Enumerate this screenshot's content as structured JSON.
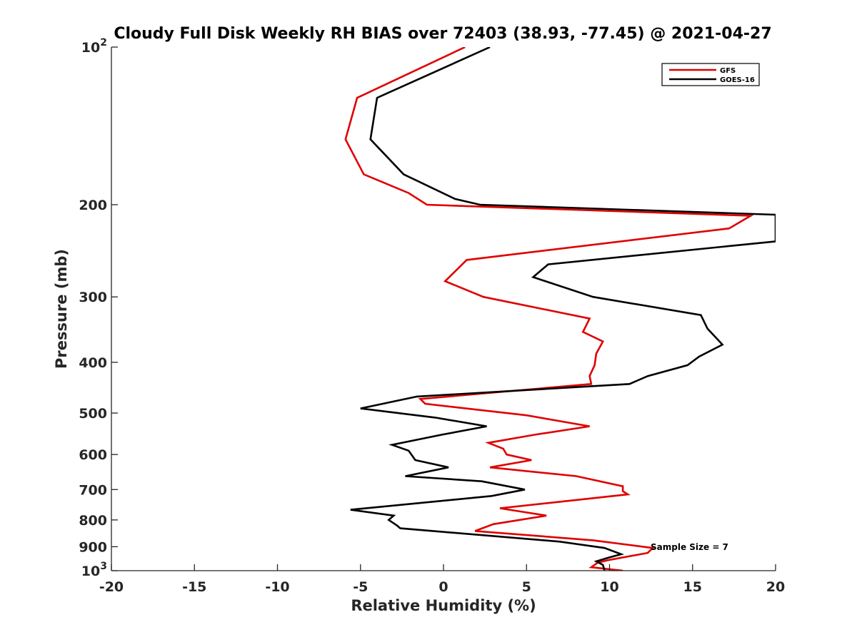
{
  "chart_data": {
    "type": "line",
    "title": "Cloudy Full Disk Weekly RH BIAS over 72403 (38.93, -77.45) @ 2021-04-27",
    "xlabel": "Relative Humidity (%)",
    "ylabel": "Pressure (mb)",
    "xlim": [
      -20,
      20
    ],
    "ylim": [
      1000,
      100
    ],
    "y_scale": "log",
    "y_reversed": true,
    "grid": false,
    "legend": "top-right",
    "x_ticks": [
      -20,
      -15,
      -10,
      -5,
      0,
      5,
      10,
      15,
      20
    ],
    "x_tick_labels": [
      "-20",
      "-15",
      "-10",
      "-5",
      "0",
      "5",
      "10",
      "15",
      "20"
    ],
    "y_ticks": [
      100,
      200,
      300,
      400,
      500,
      600,
      700,
      800,
      900,
      1000
    ],
    "y_tick_labels": [
      {
        "base": "10",
        "exp": "2"
      },
      {
        "base": "200"
      },
      {
        "base": "300"
      },
      {
        "base": "400"
      },
      {
        "base": "500"
      },
      {
        "base": "600"
      },
      {
        "base": "700"
      },
      {
        "base": "800"
      },
      {
        "base": "900"
      },
      {
        "base": "10",
        "exp": "3"
      }
    ],
    "annotation": "Sample Size = 7",
    "series": [
      {
        "name": "GFS",
        "color": "#e00000",
        "points": [
          [
            1.3,
            100
          ],
          [
            -5.2,
            125
          ],
          [
            -5.9,
            150
          ],
          [
            -4.8,
            175
          ],
          [
            -2.1,
            190
          ],
          [
            -1.0,
            200
          ],
          [
            18.5,
            210
          ],
          [
            17.2,
            222
          ],
          [
            1.4,
            255
          ],
          [
            0.1,
            280
          ],
          [
            2.4,
            300
          ],
          [
            8.8,
            330
          ],
          [
            8.4,
            350
          ],
          [
            9.6,
            365
          ],
          [
            9.2,
            385
          ],
          [
            9.1,
            405
          ],
          [
            8.8,
            425
          ],
          [
            8.9,
            440
          ],
          [
            -1.4,
            470
          ],
          [
            -1.1,
            480
          ],
          [
            5.0,
            505
          ],
          [
            8.8,
            530
          ],
          [
            5.5,
            550
          ],
          [
            2.7,
            570
          ],
          [
            3.6,
            585
          ],
          [
            3.8,
            600
          ],
          [
            5.3,
            615
          ],
          [
            2.8,
            635
          ],
          [
            8.0,
            660
          ],
          [
            10.8,
            690
          ],
          [
            10.8,
            705
          ],
          [
            11.1,
            715
          ],
          [
            3.4,
            760
          ],
          [
            6.2,
            785
          ],
          [
            3.0,
            815
          ],
          [
            1.9,
            840
          ],
          [
            9.0,
            875
          ],
          [
            12.6,
            905
          ],
          [
            12.3,
            925
          ],
          [
            9.9,
            955
          ],
          [
            9.3,
            965
          ],
          [
            8.9,
            985
          ],
          [
            10.8,
            1000
          ]
        ]
      },
      {
        "name": "GOES-16",
        "color": "#000000",
        "points": [
          [
            2.8,
            100
          ],
          [
            -4.0,
            125
          ],
          [
            -4.4,
            150
          ],
          [
            -2.4,
            175
          ],
          [
            0.7,
            195
          ],
          [
            2.2,
            200
          ],
          [
            20.0,
            209
          ],
          [
            20.0,
            235
          ],
          [
            6.3,
            260
          ],
          [
            5.4,
            275
          ],
          [
            9.0,
            300
          ],
          [
            15.5,
            325
          ],
          [
            15.9,
            345
          ],
          [
            16.8,
            370
          ],
          [
            15.4,
            390
          ],
          [
            14.7,
            405
          ],
          [
            12.3,
            425
          ],
          [
            11.2,
            440
          ],
          [
            -1.6,
            465
          ],
          [
            -5.0,
            490
          ],
          [
            -0.5,
            510
          ],
          [
            2.6,
            530
          ],
          [
            -0.1,
            550
          ],
          [
            -3.1,
            575
          ],
          [
            -2.1,
            590
          ],
          [
            -1.7,
            615
          ],
          [
            0.3,
            635
          ],
          [
            -2.3,
            660
          ],
          [
            2.3,
            675
          ],
          [
            4.9,
            700
          ],
          [
            2.9,
            720
          ],
          [
            -5.6,
            765
          ],
          [
            -3.0,
            785
          ],
          [
            -3.3,
            800
          ],
          [
            -2.8,
            820
          ],
          [
            -2.6,
            830
          ],
          [
            7.0,
            880
          ],
          [
            9.7,
            905
          ],
          [
            10.7,
            930
          ],
          [
            9.9,
            945
          ],
          [
            9.2,
            960
          ],
          [
            9.6,
            975
          ],
          [
            9.7,
            1000
          ]
        ]
      }
    ]
  }
}
